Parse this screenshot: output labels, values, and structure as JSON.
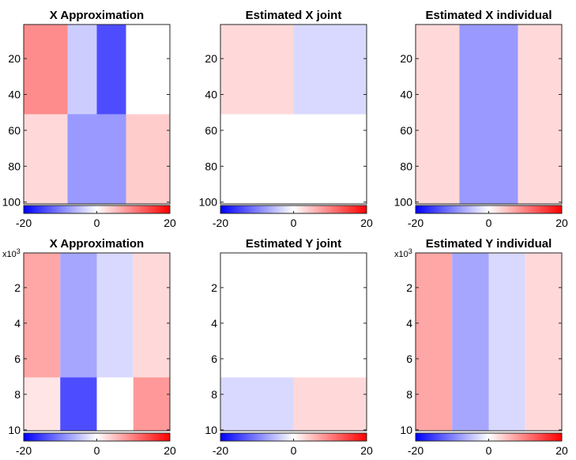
{
  "chart_data": [
    {
      "type": "heatmap",
      "title": "X Approximation",
      "xlabel": "",
      "ylabel": "",
      "yticks": [
        "20",
        "40",
        "60",
        "80",
        "100"
      ],
      "ytick_values": [
        20,
        40,
        60,
        80,
        100
      ],
      "ylim": [
        1,
        101
      ],
      "xlim": [
        0,
        1
      ],
      "y_multiplier": "",
      "clim": [
        -20,
        20
      ],
      "colorbar_ticks": [
        "-20",
        "0",
        "20"
      ],
      "colorbar_tick_values": [
        -20,
        0,
        20
      ],
      "colormap": [
        "#0000ff",
        "#ffffff",
        "#ff0000"
      ],
      "cells": [
        {
          "x0": 0.0,
          "x1": 0.3,
          "y0": 1,
          "y1": 51,
          "value": 9
        },
        {
          "x0": 0.3,
          "x1": 0.5,
          "y0": 1,
          "y1": 51,
          "value": -4
        },
        {
          "x0": 0.5,
          "x1": 0.7,
          "y0": 1,
          "y1": 51,
          "value": -14
        },
        {
          "x0": 0.7,
          "x1": 1.0,
          "y0": 1,
          "y1": 51,
          "value": 0
        },
        {
          "x0": 0.0,
          "x1": 0.3,
          "y0": 51,
          "y1": 101,
          "value": 3
        },
        {
          "x0": 0.3,
          "x1": 0.7,
          "y0": 51,
          "y1": 101,
          "value": -8
        },
        {
          "x0": 0.7,
          "x1": 1.0,
          "y0": 51,
          "y1": 101,
          "value": 4
        }
      ]
    },
    {
      "type": "heatmap",
      "title": "Estimated X joint",
      "xlabel": "",
      "ylabel": "",
      "yticks": [
        "20",
        "40",
        "60",
        "80",
        "100"
      ],
      "ytick_values": [
        20,
        40,
        60,
        80,
        100
      ],
      "ylim": [
        1,
        101
      ],
      "xlim": [
        0,
        1
      ],
      "y_multiplier": "",
      "clim": [
        -20,
        20
      ],
      "colorbar_ticks": [
        "-20",
        "0",
        "20"
      ],
      "colorbar_tick_values": [
        -20,
        0,
        20
      ],
      "colormap": [
        "#0000ff",
        "#ffffff",
        "#ff0000"
      ],
      "cells": [
        {
          "x0": 0.0,
          "x1": 0.5,
          "y0": 1,
          "y1": 51,
          "value": 3
        },
        {
          "x0": 0.5,
          "x1": 1.0,
          "y0": 1,
          "y1": 51,
          "value": -3
        },
        {
          "x0": 0.0,
          "x1": 1.0,
          "y0": 51,
          "y1": 101,
          "value": 0
        }
      ]
    },
    {
      "type": "heatmap",
      "title": "Estimated X individual",
      "xlabel": "",
      "ylabel": "",
      "yticks": [
        "20",
        "40",
        "60",
        "80",
        "100"
      ],
      "ytick_values": [
        20,
        40,
        60,
        80,
        100
      ],
      "ylim": [
        1,
        101
      ],
      "xlim": [
        0,
        1
      ],
      "y_multiplier": "",
      "clim": [
        -20,
        20
      ],
      "colorbar_ticks": [
        "-20",
        "0",
        "20"
      ],
      "colorbar_tick_values": [
        -20,
        0,
        20
      ],
      "colormap": [
        "#0000ff",
        "#ffffff",
        "#ff0000"
      ],
      "cells": [
        {
          "x0": 0.0,
          "x1": 0.3,
          "y0": 1,
          "y1": 101,
          "value": 3
        },
        {
          "x0": 0.3,
          "x1": 0.7,
          "y0": 1,
          "y1": 101,
          "value": -8
        },
        {
          "x0": 0.7,
          "x1": 1.0,
          "y0": 1,
          "y1": 101,
          "value": 3
        }
      ]
    },
    {
      "type": "heatmap",
      "title": "X Approximation",
      "xlabel": "",
      "ylabel": "",
      "yticks": [
        "2",
        "4",
        "6",
        "8",
        "10"
      ],
      "ytick_values": [
        2,
        4,
        6,
        8,
        10
      ],
      "ylim": [
        0.05,
        10.05
      ],
      "xlim": [
        0,
        1
      ],
      "y_multiplier": "x10",
      "y_multiplier_exp": "3",
      "clim": [
        -20,
        20
      ],
      "colorbar_ticks": [
        "-20",
        "0",
        "20"
      ],
      "colorbar_tick_values": [
        -20,
        0,
        20
      ],
      "colormap": [
        "#0000ff",
        "#ffffff",
        "#ff0000"
      ],
      "cells": [
        {
          "x0": 0.0,
          "x1": 0.25,
          "y0": 0.05,
          "y1": 7.05,
          "value": 7
        },
        {
          "x0": 0.25,
          "x1": 0.5,
          "y0": 0.05,
          "y1": 7.05,
          "value": -7
        },
        {
          "x0": 0.5,
          "x1": 0.75,
          "y0": 0.05,
          "y1": 7.05,
          "value": -3
        },
        {
          "x0": 0.75,
          "x1": 1.0,
          "y0": 0.05,
          "y1": 7.05,
          "value": 3
        },
        {
          "x0": 0.0,
          "x1": 0.25,
          "y0": 7.05,
          "y1": 10.05,
          "value": 2
        },
        {
          "x0": 0.25,
          "x1": 0.5,
          "y0": 7.05,
          "y1": 10.05,
          "value": -14
        },
        {
          "x0": 0.5,
          "x1": 0.75,
          "y0": 7.05,
          "y1": 10.05,
          "value": 0
        },
        {
          "x0": 0.75,
          "x1": 1.0,
          "y0": 7.05,
          "y1": 10.05,
          "value": 8
        }
      ]
    },
    {
      "type": "heatmap",
      "title": "Estimated Y joint",
      "xlabel": "",
      "ylabel": "",
      "yticks": [
        "2",
        "4",
        "6",
        "8",
        "10"
      ],
      "ytick_values": [
        2,
        4,
        6,
        8,
        10
      ],
      "ylim": [
        0.05,
        10.05
      ],
      "xlim": [
        0,
        1
      ],
      "y_multiplier": "",
      "clim": [
        -20,
        20
      ],
      "colorbar_ticks": [
        "-20",
        "0",
        "20"
      ],
      "colorbar_tick_values": [
        -20,
        0,
        20
      ],
      "colormap": [
        "#0000ff",
        "#ffffff",
        "#ff0000"
      ],
      "cells": [
        {
          "x0": 0.0,
          "x1": 1.0,
          "y0": 0.05,
          "y1": 7.05,
          "value": 0
        },
        {
          "x0": 0.0,
          "x1": 0.5,
          "y0": 7.05,
          "y1": 10.05,
          "value": -3
        },
        {
          "x0": 0.5,
          "x1": 1.0,
          "y0": 7.05,
          "y1": 10.05,
          "value": 3
        }
      ]
    },
    {
      "type": "heatmap",
      "title": "Estimated Y individual",
      "xlabel": "",
      "ylabel": "",
      "yticks": [
        "2",
        "4",
        "6",
        "8",
        "10"
      ],
      "ytick_values": [
        2,
        4,
        6,
        8,
        10
      ],
      "ylim": [
        0.05,
        10.05
      ],
      "xlim": [
        0,
        1
      ],
      "y_multiplier": "x10",
      "y_multiplier_exp": "3",
      "clim": [
        -20,
        20
      ],
      "colorbar_ticks": [
        "-20",
        "0",
        "20"
      ],
      "colorbar_tick_values": [
        -20,
        0,
        20
      ],
      "colormap": [
        "#0000ff",
        "#ffffff",
        "#ff0000"
      ],
      "cells": [
        {
          "x0": 0.0,
          "x1": 0.25,
          "y0": 0.05,
          "y1": 10.05,
          "value": 7
        },
        {
          "x0": 0.25,
          "x1": 0.5,
          "y0": 0.05,
          "y1": 10.05,
          "value": -7
        },
        {
          "x0": 0.5,
          "x1": 0.75,
          "y0": 0.05,
          "y1": 10.05,
          "value": -3
        },
        {
          "x0": 0.75,
          "x1": 1.0,
          "y0": 0.05,
          "y1": 10.05,
          "value": 3
        }
      ]
    }
  ]
}
